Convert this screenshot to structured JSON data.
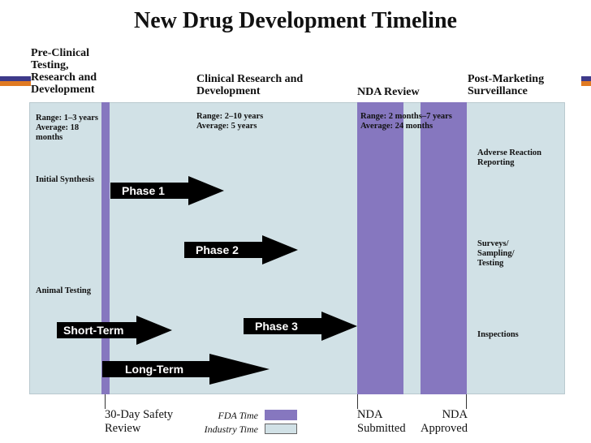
{
  "title": "New Drug Development Timeline",
  "phases": [
    {
      "name": "Pre-Clinical Testing, Research and Development"
    },
    {
      "name": "Clinical Research and Development"
    },
    {
      "name": "NDA Review"
    },
    {
      "name": "Post-Marketing Surveillance"
    }
  ],
  "ranges": {
    "preclinical": "Range: 1–3 years Average: 18 months",
    "clinical": "Range: 2–10 years Average: 5 years",
    "nda": "Range: 2 months–7 years Average: 24 months"
  },
  "activities": {
    "initial_synthesis": "Initial Synthesis",
    "animal_testing": "Animal Testing",
    "adverse": "Adverse Reaction Reporting",
    "surveys": "Surveys/ Sampling/ Testing",
    "inspections": "Inspections"
  },
  "arrows": {
    "phase1": "Phase 1",
    "phase2": "Phase 2",
    "phase3": "Phase 3",
    "short_term": "Short-Term",
    "long_term": "Long-Term"
  },
  "milestones": {
    "safety_review": "30-Day Safety Review",
    "nda_submitted": "NDA Submitted",
    "nda_approved": "NDA Approved"
  },
  "legend": {
    "fda_time": "FDA Time",
    "industry_time": "Industry Time"
  },
  "colors": {
    "fda": "#8677bf",
    "industry": "#d1e1e6",
    "arrow": "#000000",
    "accent_blue": "#3e3a8a",
    "accent_orange": "#e07a22"
  }
}
